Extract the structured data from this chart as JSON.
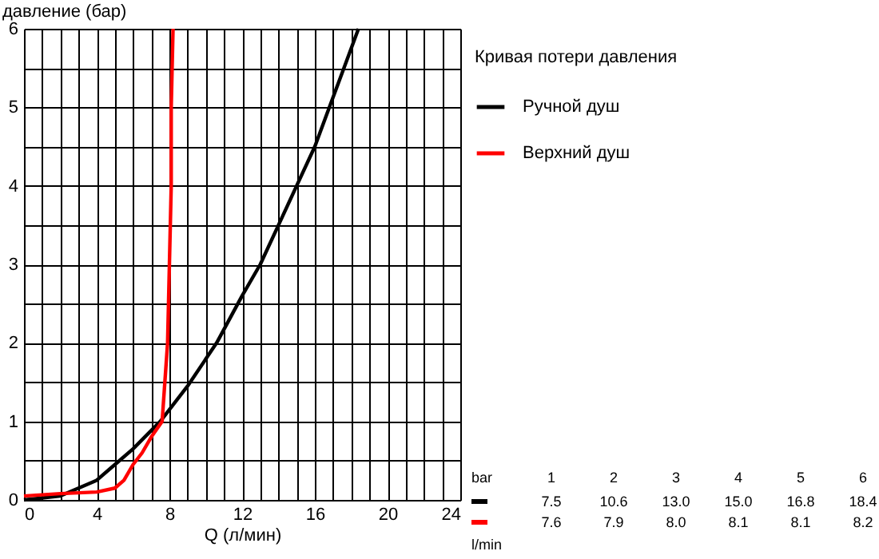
{
  "chart_data": {
    "type": "line",
    "xlabel": "Q (л/мин)",
    "ylabel": "давление (бар)",
    "legend_title": "Кривая потери давления",
    "legend": "right",
    "grid": true,
    "marker": "none",
    "line_style": "solid",
    "xlim": [
      0,
      24
    ],
    "ylim": [
      0,
      6
    ],
    "xticks": [
      0,
      {
        "value": 1,
        "label": null
      },
      {
        "value": 2,
        "label": null
      },
      {
        "value": 3,
        "label": null
      },
      4,
      {
        "value": 5,
        "label": null
      },
      {
        "value": 6,
        "label": null
      },
      {
        "value": 7,
        "label": null
      },
      8,
      {
        "value": 9,
        "label": null
      },
      {
        "value": 10,
        "label": null
      },
      {
        "value": 11,
        "label": null
      },
      12,
      {
        "value": 13,
        "label": null
      },
      {
        "value": 14,
        "label": null
      },
      {
        "value": 15,
        "label": null
      },
      16,
      {
        "value": 17,
        "label": null
      },
      {
        "value": 18,
        "label": null
      },
      {
        "value": 19,
        "label": null
      },
      20,
      {
        "value": 21,
        "label": null
      },
      {
        "value": 22,
        "label": null
      },
      {
        "value": 23,
        "label": null
      },
      24
    ],
    "yticks": [
      0,
      {
        "value": 0.5,
        "label": null
      },
      1,
      {
        "value": 1.5,
        "label": null
      },
      2,
      {
        "value": 2.5,
        "label": null
      },
      3,
      {
        "value": 3.5,
        "label": null
      },
      4,
      {
        "value": 4.5,
        "label": null
      },
      5,
      {
        "value": 5.5,
        "label": null
      },
      6
    ],
    "annotations": [
      "bar",
      "1",
      "2",
      "3",
      "4",
      "5",
      "6",
      "7.5",
      "10.6",
      "13.0",
      "15.0",
      "16.8",
      "18.4",
      "7.6",
      "7.9",
      "8.0",
      "8.1",
      "8.1",
      "8.2",
      "l/min"
    ],
    "series": [
      {
        "name": "Ручной душ",
        "color": "#000000",
        "x": [
          0,
          2,
          4,
          5,
          6,
          7.5,
          9,
          10.6,
          12,
          13,
          14,
          15,
          16,
          16.8,
          17.6,
          18.4
        ],
        "values": [
          0,
          0.05,
          0.25,
          0.45,
          0.65,
          1,
          1.45,
          2,
          2.6,
          3,
          3.5,
          4,
          4.5,
          5,
          5.5,
          6
        ]
      },
      {
        "name": "Верхний душ",
        "color": "#ff0000",
        "x": [
          0,
          2,
          4,
          5,
          5.5,
          6,
          6.5,
          7,
          7.6,
          7.9,
          8.0,
          8.1,
          8.1,
          8.2
        ],
        "values": [
          0.05,
          0.08,
          0.1,
          0.15,
          0.25,
          0.45,
          0.6,
          0.8,
          1,
          2,
          3,
          4,
          5,
          6
        ]
      }
    ]
  }
}
